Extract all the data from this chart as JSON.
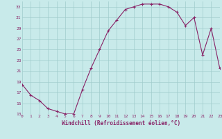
{
  "x": [
    0,
    1,
    2,
    3,
    4,
    5,
    6,
    7,
    8,
    9,
    10,
    11,
    12,
    13,
    14,
    15,
    16,
    17,
    18,
    19,
    20,
    21,
    22,
    23
  ],
  "y": [
    18.5,
    16.5,
    15.5,
    14.0,
    13.5,
    13.0,
    13.0,
    17.5,
    21.5,
    25.0,
    28.5,
    30.5,
    32.5,
    33.0,
    33.5,
    33.5,
    33.5,
    33.0,
    32.0,
    29.0,
    31.0,
    24.0,
    29.0,
    21.5
  ],
  "y_corrected": [
    18.5,
    16.5,
    15.5,
    14.0,
    13.5,
    13.0,
    13.0,
    17.5,
    21.5,
    25.0,
    28.5,
    30.5,
    32.5,
    33.0,
    33.5,
    33.5,
    33.5,
    33.0,
    32.0,
    29.5,
    31.0,
    24.0,
    29.0,
    21.5
  ],
  "line_color": "#882266",
  "marker": "+",
  "bg_color": "#c8eaea",
  "grid_color": "#a0cccc",
  "xlabel": "Windchill (Refroidissement éolien,°C)",
  "xlabel_color": "#882266",
  "tick_color": "#882266",
  "ylim": [
    13,
    34
  ],
  "yticks": [
    13,
    15,
    17,
    19,
    21,
    23,
    25,
    27,
    29,
    31,
    33
  ],
  "xlim": [
    0,
    23
  ],
  "xticks": [
    0,
    1,
    2,
    3,
    4,
    5,
    6,
    7,
    8,
    9,
    10,
    11,
    12,
    13,
    14,
    15,
    16,
    17,
    18,
    19,
    20,
    21,
    22,
    23
  ],
  "xtick_labels": [
    "0",
    "1",
    "2",
    "3",
    "4",
    "5",
    "6",
    "7",
    "8",
    "9",
    "10",
    "11",
    "12",
    "13",
    "14",
    "15",
    "16",
    "17",
    "18",
    "19",
    "20",
    "21",
    "22",
    "23"
  ]
}
